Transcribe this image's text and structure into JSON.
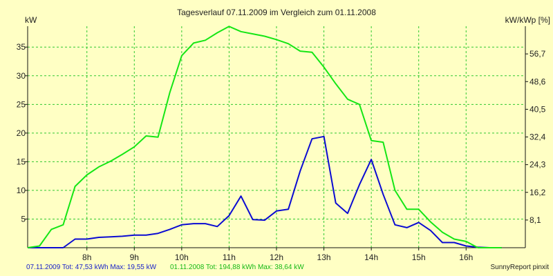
{
  "chart_data": {
    "type": "line",
    "title": "Tagesverlauf 07.11.2009 im Vergleich zum 01.11.2008",
    "ylabel_left": "kW",
    "ylabel_right": "kW/kWp [%]",
    "xlim": [
      6.75,
      17.25
    ],
    "ylim": [
      0,
      38.64
    ],
    "grid": true,
    "x_ticks": [
      8,
      9,
      10,
      11,
      12,
      13,
      14,
      15,
      16
    ],
    "x_tick_labels": [
      "8h",
      "9h",
      "10h",
      "11h",
      "12h",
      "13h",
      "14h",
      "15h",
      "16h"
    ],
    "y_ticks_left": [
      5,
      10,
      15,
      20,
      25,
      30,
      35
    ],
    "y_tick_labels_left": [
      "5",
      "10",
      "15",
      "20",
      "25",
      "30",
      "35"
    ],
    "y_ticks_right_kw": [
      4.83,
      9.66,
      14.49,
      19.32,
      24.15,
      28.98,
      33.81
    ],
    "y_tick_labels_right": [
      "8,1",
      "16,2",
      "24,3",
      "32,4",
      "40,5",
      "48,6",
      "56,7"
    ],
    "series": [
      {
        "name": "07.11.2009",
        "color": "#0a0ad2",
        "x": [
          6.75,
          7.0,
          7.5,
          7.75,
          8.0,
          8.25,
          8.5,
          8.75,
          9.0,
          9.25,
          9.5,
          9.75,
          10.0,
          10.25,
          10.5,
          10.75,
          11.0,
          11.25,
          11.5,
          11.75,
          12.0,
          12.25,
          12.5,
          12.75,
          13.0,
          13.25,
          13.5,
          13.75,
          14.0,
          14.25,
          14.5,
          14.75,
          15.0,
          15.25,
          15.5,
          15.75,
          16.0,
          16.25,
          16.5,
          16.75
        ],
        "values": [
          0,
          0,
          0,
          1.5,
          1.5,
          1.8,
          1.9,
          2.0,
          2.2,
          2.2,
          2.5,
          3.2,
          4.0,
          4.2,
          4.2,
          3.7,
          5.6,
          9.0,
          4.9,
          4.8,
          6.4,
          6.7,
          13.4,
          19.0,
          19.4,
          7.8,
          6.0,
          11.0,
          15.4,
          9.3,
          4.0,
          3.5,
          4.4,
          3.0,
          0.9,
          0.9,
          0.3,
          0.1,
          0,
          0
        ]
      },
      {
        "name": "01.11.2008",
        "color": "#14e614",
        "x": [
          6.75,
          7.0,
          7.25,
          7.5,
          7.75,
          8.0,
          8.25,
          8.5,
          8.75,
          9.0,
          9.25,
          9.5,
          9.75,
          10.0,
          10.25,
          10.5,
          10.75,
          11.0,
          11.25,
          11.5,
          11.75,
          12.0,
          12.25,
          12.5,
          12.75,
          13.0,
          13.25,
          13.5,
          13.75,
          14.0,
          14.25,
          14.5,
          14.75,
          15.0,
          15.25,
          15.5,
          15.75,
          16.0,
          16.25,
          16.5,
          16.75
        ],
        "values": [
          0,
          0.3,
          3.2,
          4.0,
          10.7,
          12.7,
          14.1,
          15.1,
          16.3,
          17.6,
          19.5,
          19.3,
          27.1,
          33.5,
          35.7,
          36.2,
          37.5,
          38.6,
          37.7,
          37.3,
          36.9,
          36.3,
          35.6,
          34.3,
          34.1,
          31.5,
          28.6,
          25.9,
          25.0,
          18.7,
          18.4,
          10.0,
          6.7,
          6.7,
          4.5,
          2.7,
          1.5,
          1.1,
          0,
          0,
          0
        ]
      }
    ]
  },
  "footer": {
    "blue_summary": "07.11.2009 Tot: 47,53 kWh Max: 19,55 kW",
    "green_summary": "01.11.2008 Tot: 194,88 kWh Max: 38,64 kW",
    "credit": "SunnyReport pinxit"
  },
  "colors": {
    "background": "#ffffc4",
    "grid": "#2ec82e",
    "axis": "#111111"
  }
}
